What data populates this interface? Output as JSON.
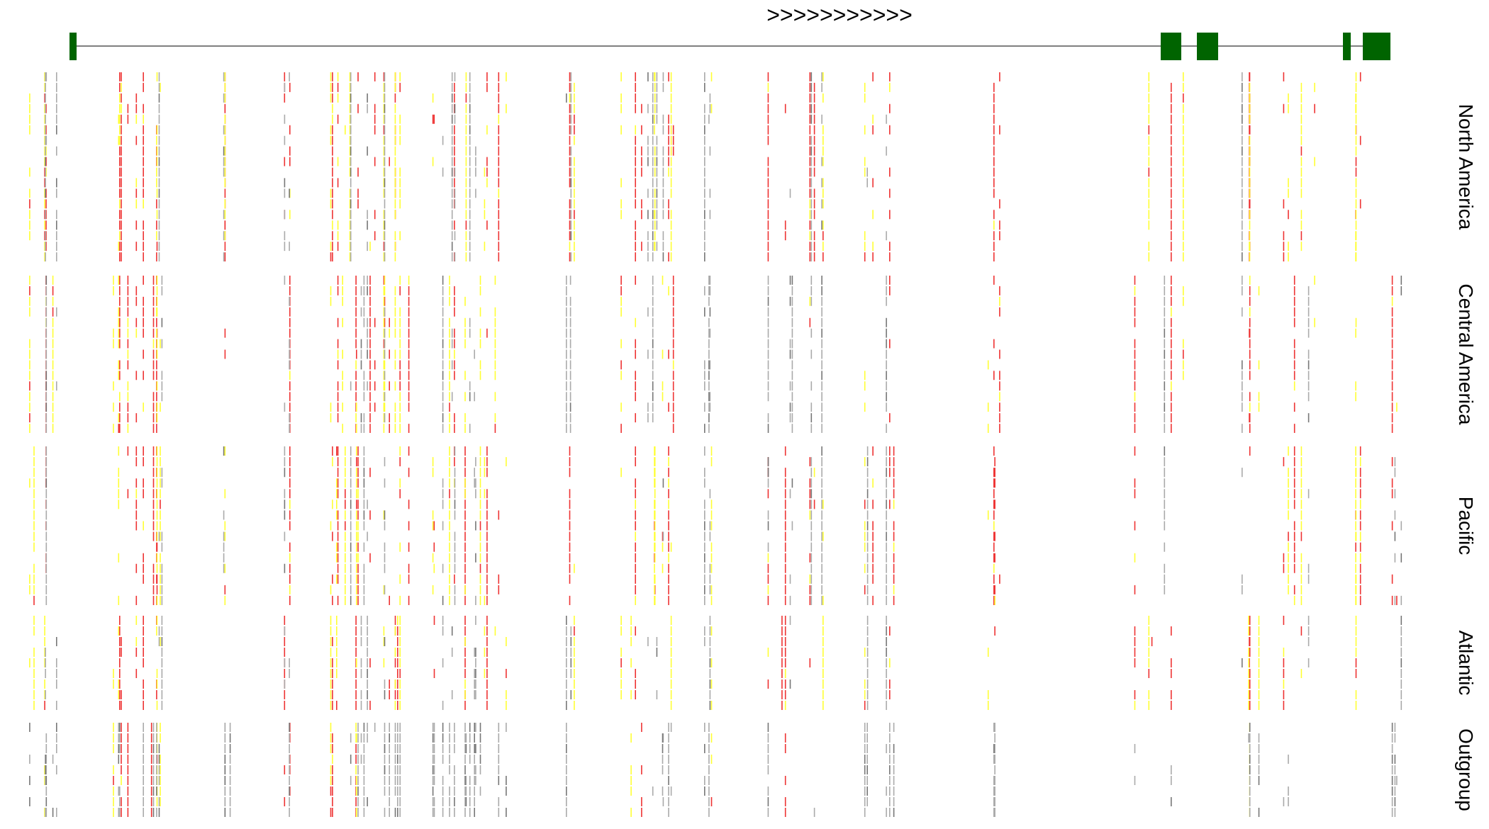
{
  "header": {
    "strand": ">>>>>>>>>>>"
  },
  "groups": [
    {
      "label": "North America"
    },
    {
      "label": "Central America"
    },
    {
      "label": "Pacific"
    },
    {
      "label": "Atlantic"
    },
    {
      "label": "Outgroup"
    }
  ]
}
